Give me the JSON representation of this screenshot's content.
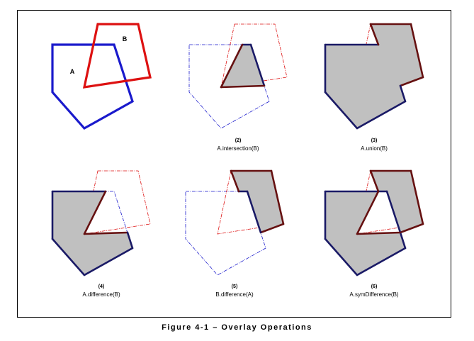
{
  "labels": {
    "a": "A",
    "b": "B"
  },
  "panels": [
    {
      "number": "",
      "caption": "",
      "mode": "input"
    },
    {
      "number": "(2)",
      "caption": "A.intersection(B)",
      "mode": "intersection"
    },
    {
      "number": "(3)",
      "caption": "A.union(B)",
      "mode": "union"
    },
    {
      "number": "(4)",
      "caption": "A.difference(B)",
      "mode": "difference"
    },
    {
      "number": "(5)",
      "caption": "B.difference(A)",
      "mode": "bdifference"
    },
    {
      "number": "(6)",
      "caption": "A.symDifference(B)",
      "mode": "symdifference"
    }
  ],
  "figure_caption": "Figure 4-1 – Overlay Operations",
  "colors": {
    "polygon_a": "#1a1acc",
    "polygon_b": "#dd1111",
    "result_fill": "#c0c0c0",
    "result_outline_a": "#1a1a66",
    "result_outline_b": "#661111"
  }
}
